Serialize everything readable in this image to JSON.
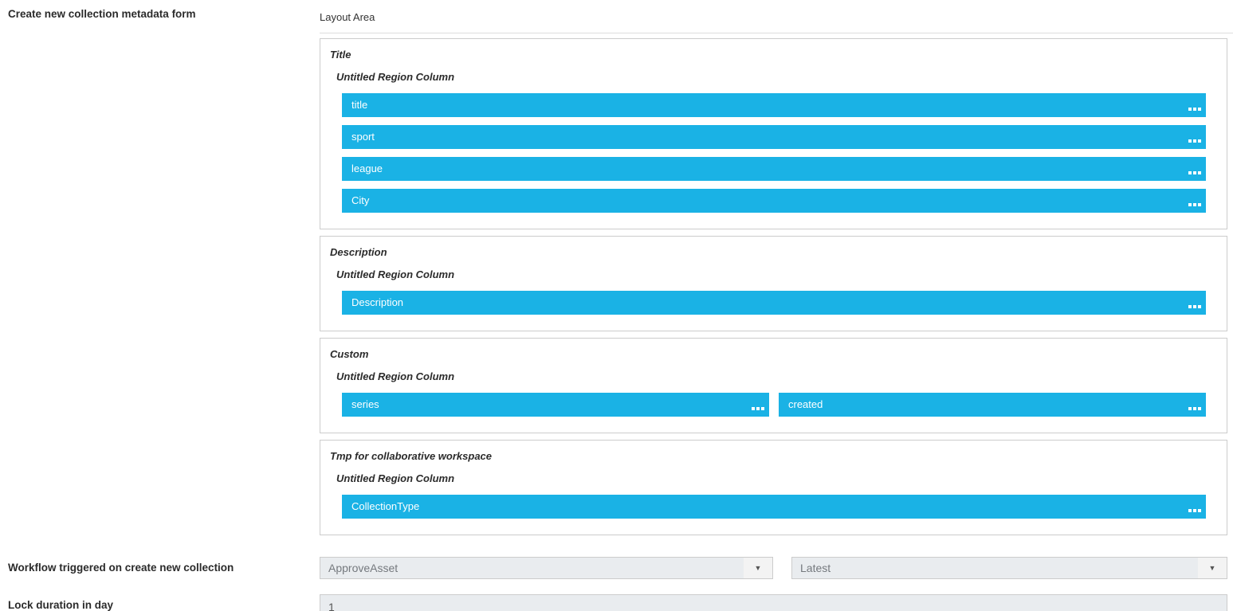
{
  "header": {
    "form_label": "Create new collection metadata form",
    "layout_area_label": "Layout Area"
  },
  "regions": [
    {
      "title": "Title",
      "column_label": "Untitled Region Column",
      "fields": [
        {
          "label": "title"
        },
        {
          "label": "sport"
        },
        {
          "label": "league"
        },
        {
          "label": "City"
        }
      ]
    },
    {
      "title": "Description",
      "column_label": "Untitled Region Column",
      "fields": [
        {
          "label": "Description"
        }
      ]
    },
    {
      "title": "Custom",
      "column_label": "Untitled Region Column",
      "fields": [
        {
          "label": "series"
        },
        {
          "label": "created"
        }
      ]
    },
    {
      "title": "Tmp for collaborative workspace",
      "column_label": "Untitled Region Column",
      "fields": [
        {
          "label": "CollectionType"
        }
      ]
    }
  ],
  "workflow": {
    "label": "Workflow triggered on create new collection",
    "workflow_select_value": "ApproveAsset",
    "version_select_value": "Latest"
  },
  "lock": {
    "label": "Lock duration in day",
    "value": "1"
  },
  "icons": {
    "field_menu": "ellipsis-icon",
    "dropdown_arrow": "▼"
  },
  "colors": {
    "field_bar_blue": "#1ab2e5",
    "region_border": "#cccccc",
    "input_background": "#e9ecef",
    "divider": "#dddddd"
  }
}
